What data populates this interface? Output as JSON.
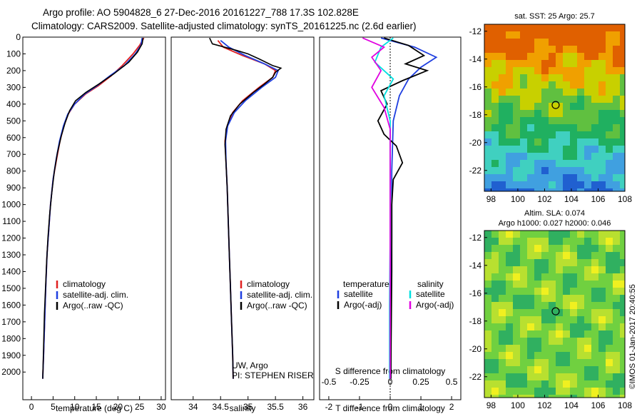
{
  "header": {
    "line1": "Argo profile: AO 5904828_6 27-Dec-2016 20161227_788 17.3S 102.828E",
    "line2": "Climatology: CARS2009. Satellite-adjusted climatology: synTS_20161225.nc (2.6d earlier)"
  },
  "colors": {
    "clim": "#e02020",
    "sat": "#1f3fe0",
    "argo": "#000000",
    "sal_sat": "#00e0e0",
    "sal_argo": "#e000e0"
  },
  "chart_data": [
    {
      "type": "line",
      "xlabel": "temperature (deg C)",
      "ylabel": "",
      "xlim": [
        -2,
        31
      ],
      "ylim": [
        2080,
        0
      ],
      "xticks": [
        0,
        5,
        10,
        15,
        20,
        25,
        30
      ],
      "yticks": [
        0,
        100,
        200,
        300,
        400,
        500,
        600,
        700,
        800,
        900,
        1000,
        1100,
        1200,
        1300,
        1400,
        1500,
        1600,
        1700,
        1800,
        1900,
        2000
      ],
      "legend": [
        "climatology",
        "satellite-adj. clim.",
        "Argo(..raw -QC)"
      ],
      "series": [
        {
          "name": "climatology",
          "color": "#e02020",
          "points": [
            [
              26,
              5
            ],
            [
              25,
              50
            ],
            [
              23.5,
              100
            ],
            [
              21,
              170
            ],
            [
              18.5,
              230
            ],
            [
              15.5,
              290
            ],
            [
              12.5,
              340
            ],
            [
              10,
              400
            ],
            [
              8.5,
              460
            ],
            [
              7.5,
              530
            ],
            [
              6.6,
              620
            ],
            [
              5.8,
              730
            ],
            [
              5,
              850
            ],
            [
              4.4,
              1000
            ],
            [
              4,
              1150
            ],
            [
              3.6,
              1300
            ],
            [
              3.3,
              1500
            ],
            [
              3.05,
              1700
            ],
            [
              2.8,
              1900
            ],
            [
              2.6,
              2040
            ]
          ]
        },
        {
          "name": "satellite-adj. clim.",
          "color": "#1f3fe0",
          "points": [
            [
              25.6,
              5
            ],
            [
              25.3,
              50
            ],
            [
              24,
              100
            ],
            [
              21.5,
              170
            ],
            [
              18.2,
              230
            ],
            [
              15.2,
              290
            ],
            [
              12.3,
              340
            ],
            [
              10,
              400
            ],
            [
              8.4,
              460
            ],
            [
              7.4,
              530
            ],
            [
              6.5,
              620
            ],
            [
              5.7,
              730
            ],
            [
              5,
              850
            ],
            [
              4.4,
              1000
            ],
            [
              4,
              1150
            ],
            [
              3.6,
              1300
            ],
            [
              3.3,
              1500
            ],
            [
              3.05,
              1700
            ],
            [
              2.8,
              1900
            ],
            [
              2.6,
              2040
            ]
          ]
        },
        {
          "name": "Argo(..raw -QC)",
          "color": "#000000",
          "points": [
            [
              25.8,
              5
            ],
            [
              25.6,
              40
            ],
            [
              24.5,
              90
            ],
            [
              22.5,
              150
            ],
            [
              19,
              220
            ],
            [
              15.6,
              280
            ],
            [
              12.6,
              330
            ],
            [
              10.2,
              380
            ],
            [
              8.8,
              440
            ],
            [
              7.8,
              510
            ],
            [
              6.9,
              590
            ],
            [
              6,
              690
            ],
            [
              5.3,
              800
            ],
            [
              4.7,
              930
            ],
            [
              4.2,
              1060
            ],
            [
              3.8,
              1200
            ],
            [
              3.5,
              1350
            ],
            [
              3.25,
              1500
            ],
            [
              3.0,
              1650
            ],
            [
              2.85,
              1800
            ],
            [
              2.7,
              1950
            ],
            [
              2.6,
              2040
            ]
          ]
        }
      ]
    },
    {
      "type": "line",
      "xlabel": "salinity",
      "ylabel": "",
      "xlim": [
        33.6,
        36.2
      ],
      "ylim": [
        2080,
        0
      ],
      "xticks": [
        34,
        34.5,
        35,
        35.5,
        36
      ],
      "legend": [
        "climatology",
        "satellite-adj. clim.",
        "Argo(..raw -QC)"
      ],
      "annotation": [
        "UW, Argo",
        "PI: STEPHEN RISER"
      ],
      "series": [
        {
          "name": "climatology",
          "color": "#e02020",
          "points": [
            [
              34.45,
              20
            ],
            [
              34.55,
              60
            ],
            [
              34.9,
              110
            ],
            [
              35.3,
              160
            ],
            [
              35.5,
              200
            ],
            [
              35.45,
              240
            ],
            [
              35.2,
              300
            ],
            [
              34.9,
              380
            ],
            [
              34.72,
              450
            ],
            [
              34.62,
              530
            ],
            [
              34.58,
              620
            ],
            [
              34.6,
              750
            ],
            [
              34.62,
              900
            ],
            [
              34.64,
              1100
            ],
            [
              34.66,
              1300
            ],
            [
              34.68,
              1500
            ],
            [
              34.7,
              1700
            ],
            [
              34.72,
              1900
            ],
            [
              34.73,
              2040
            ]
          ]
        },
        {
          "name": "satellite-adj. clim.",
          "color": "#1f3fe0",
          "points": [
            [
              34.5,
              20
            ],
            [
              34.65,
              60
            ],
            [
              34.95,
              110
            ],
            [
              35.3,
              160
            ],
            [
              35.55,
              200
            ],
            [
              35.5,
              240
            ],
            [
              35.25,
              300
            ],
            [
              34.95,
              380
            ],
            [
              34.75,
              450
            ],
            [
              34.63,
              530
            ],
            [
              34.59,
              620
            ],
            [
              34.6,
              750
            ],
            [
              34.62,
              900
            ],
            [
              34.64,
              1100
            ],
            [
              34.66,
              1300
            ],
            [
              34.68,
              1500
            ],
            [
              34.7,
              1700
            ],
            [
              34.72,
              1900
            ],
            [
              34.73,
              2040
            ]
          ]
        },
        {
          "name": "Argo(..raw -QC)",
          "color": "#000000",
          "points": [
            [
              34.3,
              5
            ],
            [
              34.35,
              40
            ],
            [
              34.8,
              80
            ],
            [
              35.0,
              100
            ],
            [
              35.2,
              130
            ],
            [
              35.45,
              170
            ],
            [
              35.6,
              185
            ],
            [
              35.5,
              210
            ],
            [
              35.45,
              240
            ],
            [
              35.3,
              280
            ],
            [
              35.1,
              330
            ],
            [
              34.85,
              400
            ],
            [
              34.68,
              470
            ],
            [
              34.6,
              550
            ],
            [
              34.58,
              640
            ],
            [
              34.6,
              760
            ],
            [
              34.62,
              900
            ],
            [
              34.64,
              1100
            ],
            [
              34.66,
              1300
            ],
            [
              34.68,
              1500
            ],
            [
              34.7,
              1700
            ],
            [
              34.72,
              1900
            ],
            [
              34.73,
              2040
            ]
          ]
        }
      ]
    },
    {
      "type": "line",
      "xlabel": "T difference from climatology",
      "x2label": "S difference from climatology",
      "xlim": [
        -2.3,
        2.3
      ],
      "ylim": [
        2080,
        0
      ],
      "xticks": [
        -2,
        -1,
        0,
        1,
        2
      ],
      "x2ticks": [
        -0.5,
        -0.25,
        0,
        0.25,
        0.5
      ],
      "x2tick_labels": [
        "-0.5",
        "-0.25",
        "0",
        "0.25",
        "0.5"
      ],
      "legend_left_title": "temperature",
      "legend_right_title": "salinity",
      "legend": [
        "satellite",
        "Argo(-adj)",
        "satellite",
        "Argo(-adj)"
      ],
      "series": [
        {
          "name": "satellite",
          "color": "#1f3fe0",
          "points": [
            [
              -0.3,
              5
            ],
            [
              0.8,
              60
            ],
            [
              1.5,
              120
            ],
            [
              1.0,
              180
            ],
            [
              0.6,
              250
            ],
            [
              0.3,
              350
            ],
            [
              0.1,
              500
            ],
            [
              0.05,
              800
            ],
            [
              0.05,
              1200
            ],
            [
              0.03,
              1600
            ],
            [
              0.02,
              2040
            ]
          ]
        },
        {
          "name": "Argo(-adj)",
          "color": "#000000",
          "points": [
            [
              -0.2,
              5
            ],
            [
              0.6,
              50
            ],
            [
              1.1,
              110
            ],
            [
              0.5,
              160
            ],
            [
              1.2,
              200
            ],
            [
              0.4,
              260
            ],
            [
              -0.3,
              320
            ],
            [
              -0.1,
              400
            ],
            [
              -0.4,
              500
            ],
            [
              -0.2,
              580
            ],
            [
              0.2,
              650
            ],
            [
              0.4,
              750
            ],
            [
              0.1,
              850
            ],
            [
              0.05,
              1000
            ],
            [
              0.05,
              1400
            ],
            [
              0.03,
              1800
            ],
            [
              0.02,
              2040
            ]
          ]
        },
        {
          "name": "satellite",
          "color": "#00e0e0",
          "points": [
            [
              0.1,
              5
            ],
            [
              -0.3,
              60
            ],
            [
              -0.5,
              150
            ],
            [
              0.1,
              250
            ],
            [
              -0.2,
              350
            ],
            [
              0.0,
              500
            ],
            [
              0.0,
              800
            ],
            [
              0.0,
              1200
            ],
            [
              -0.02,
              1600
            ],
            [
              -0.02,
              2040
            ]
          ]
        },
        {
          "name": "Argo(-adj)",
          "color": "#e000e0",
          "points": [
            [
              -0.9,
              5
            ],
            [
              -0.2,
              60
            ],
            [
              -0.6,
              120
            ],
            [
              -0.3,
              200
            ],
            [
              -0.6,
              300
            ],
            [
              -0.2,
              420
            ],
            [
              0.0,
              550
            ],
            [
              0.0,
              800
            ],
            [
              0.0,
              1200
            ],
            [
              0.0,
              1600
            ],
            [
              0.0,
              2040
            ]
          ]
        }
      ]
    },
    {
      "type": "heatmap",
      "title": "sat. SST: 25 Argo: 25.7",
      "xlim": [
        97.5,
        108
      ],
      "ylim": [
        -23.5,
        -11.5
      ],
      "xticks": [
        98,
        100,
        102,
        104,
        106,
        108
      ],
      "yticks": [
        -12,
        -14,
        -16,
        -18,
        -20,
        -22
      ],
      "marker": [
        102.828,
        -17.3
      ],
      "colors": [
        "#e06000",
        "#f0a000",
        "#c8d000",
        "#60c040",
        "#20b060",
        "#40d0c0",
        "#40a0e0",
        "#2060d0"
      ]
    },
    {
      "type": "heatmap",
      "title": "Altim. SLA: 0.074",
      "subtitle": "Argo h1000: 0.027 h2000: 0.046",
      "xlim": [
        97.5,
        108
      ],
      "ylim": [
        -23.5,
        -11.5
      ],
      "xticks": [
        98,
        100,
        102,
        104,
        106,
        108
      ],
      "yticks": [
        -12,
        -14,
        -16,
        -18,
        -20,
        -22
      ],
      "marker": [
        102.828,
        -17.3
      ],
      "colors": [
        "#30b060",
        "#70d040",
        "#b8e030",
        "#f0f020"
      ]
    }
  ],
  "footer": {
    "credit": "©IMOS 01-Jan-2017 20:40:55"
  }
}
